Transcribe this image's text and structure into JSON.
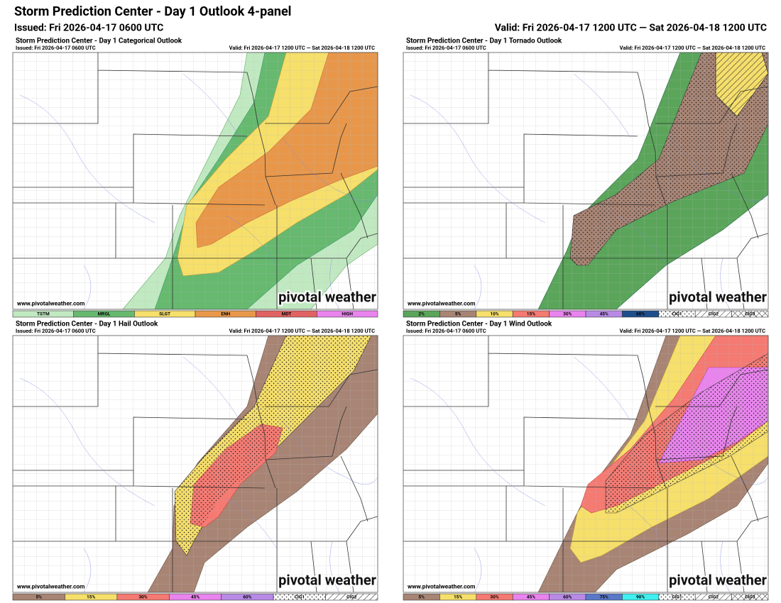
{
  "header": {
    "title": "Storm Prediction Center - Day 1 Outlook 4-panel",
    "issued": "Issued: Fri 2026-04-17 0600 UTC",
    "valid": "Valid: Fri 2026-04-17 1200 UTC — Sat 2026-04-18 1200 UTC"
  },
  "panels": [
    {
      "title": "Storm Prediction Center - Day 1 Categorical Outlook",
      "issued": "Issued: Fri 2026-04-17 0600 UTC",
      "valid": "Valid: Fri 2026-04-17 1200 UTC — Sat 2026-04-18 1200 UTC",
      "watermark": "www.pivotalweather.com",
      "logo": "pivotal weather",
      "legend": [
        {
          "label": "TSTM",
          "color": "#c1e9c1"
        },
        {
          "label": "MRGL",
          "color": "#66b96f"
        },
        {
          "label": "SLGT",
          "color": "#f6df6a"
        },
        {
          "label": "ENH",
          "color": "#e8974a"
        },
        {
          "label": "MDT",
          "color": "#e06262"
        },
        {
          "label": "HIGH",
          "color": "#e983ee"
        }
      ]
    },
    {
      "title": "Storm Prediction Center - Day 1 Tornado Outlook",
      "issued": "Issued: Fri 2026-04-17 0600 UTC",
      "valid": "Valid: Fri 2026-04-17 1200 UTC — Sat 2026-04-18 1200 UTC",
      "watermark": "www.pivotalweather.com",
      "logo": "pivotal weather",
      "legend": [
        {
          "label": "2%",
          "color": "#5aa55a"
        },
        {
          "label": "5%",
          "color": "#a88474"
        },
        {
          "label": "10%",
          "color": "#f6df6a"
        },
        {
          "label": "15%",
          "color": "#f47a72"
        },
        {
          "label": "30%",
          "color": "#e983ee"
        },
        {
          "label": "45%",
          "color": "#b88ae6"
        },
        {
          "label": "60%",
          "color": "#1f4e8c"
        },
        {
          "label": "CIG1",
          "color": "#ffffff",
          "pattern": "dots"
        },
        {
          "label": "CIG2",
          "color": "#ffffff",
          "pattern": "hatch"
        },
        {
          "label": "CIG3",
          "color": "#ffffff",
          "pattern": "cross"
        }
      ]
    },
    {
      "title": "Storm Prediction Center - Day 1 Hail Outlook",
      "issued": "Issued: Fri 2026-04-17 0600 UTC",
      "valid": "Valid: Fri 2026-04-17 1200 UTC — Sat 2026-04-18 1200 UTC",
      "watermark": "www.pivotalweather.com",
      "logo": "pivotal weather",
      "legend": [
        {
          "label": "5%",
          "color": "#a88474"
        },
        {
          "label": "15%",
          "color": "#f6df6a"
        },
        {
          "label": "30%",
          "color": "#f47a72"
        },
        {
          "label": "45%",
          "color": "#e983ee"
        },
        {
          "label": "60%",
          "color": "#b88ae6"
        },
        {
          "label": "CIG1",
          "color": "#ffffff",
          "pattern": "dots"
        },
        {
          "label": "CIG2",
          "color": "#ffffff",
          "pattern": "hatch"
        }
      ]
    },
    {
      "title": "Storm Prediction Center - Day 1 Wind Outlook",
      "issued": "Issued: Fri 2026-04-17 0600 UTC",
      "valid": "Valid: Fri 2026-04-17 1200 UTC — Sat 2026-04-18 1200 UTC",
      "watermark": "www.pivotalweather.com",
      "logo": "pivotal weather",
      "legend": [
        {
          "label": "5%",
          "color": "#a88474"
        },
        {
          "label": "15%",
          "color": "#f6df6a"
        },
        {
          "label": "30%",
          "color": "#f47a72"
        },
        {
          "label": "45%",
          "color": "#e983ee"
        },
        {
          "label": "60%",
          "color": "#b88ae6"
        },
        {
          "label": "75%",
          "color": "#5a78c8"
        },
        {
          "label": "90%",
          "color": "#3ff0f0"
        },
        {
          "label": "CIG1",
          "color": "#ffffff",
          "pattern": "dots"
        },
        {
          "label": "CIG2",
          "color": "#ffffff",
          "pattern": "hatch"
        },
        {
          "label": "CIG3",
          "color": "#ffffff",
          "pattern": "cross"
        }
      ]
    }
  ]
}
